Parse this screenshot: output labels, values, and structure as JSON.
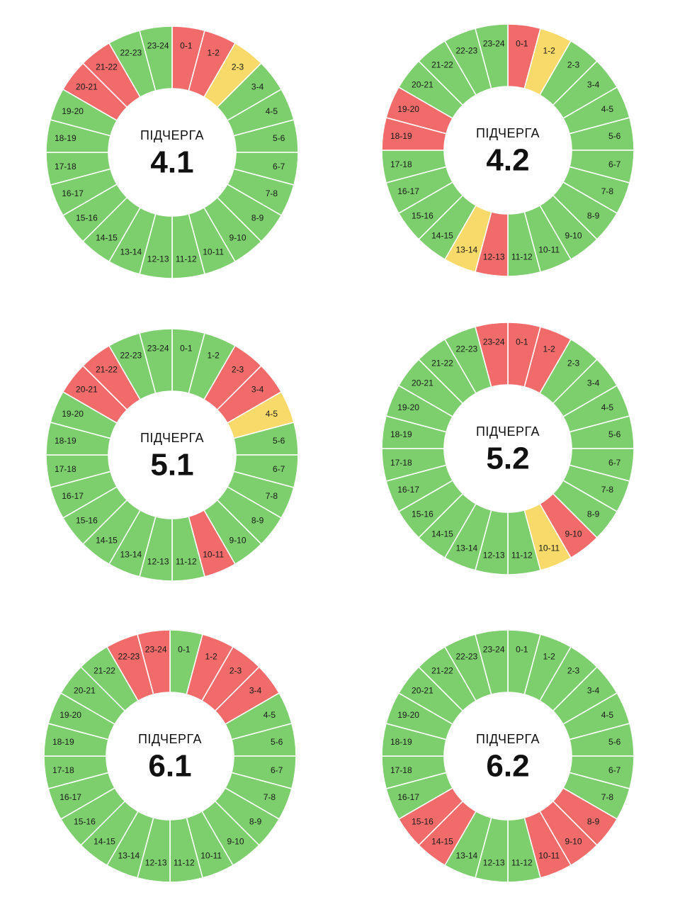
{
  "colors": {
    "on": "#7ccf6c",
    "off": "#f26b6b",
    "maybe": "#f8da6a"
  },
  "hour_labels": [
    "0-1",
    "1-2",
    "2-3",
    "3-4",
    "4-5",
    "5-6",
    "6-7",
    "7-8",
    "8-9",
    "9-10",
    "10-11",
    "11-12",
    "12-13",
    "13-14",
    "14-15",
    "15-16",
    "16-17",
    "17-18",
    "18-19",
    "19-20",
    "20-21",
    "21-22",
    "22-23",
    "23-24"
  ],
  "charts": [
    {
      "caption": "ПІДЧЕРГА",
      "number": "4.1",
      "status": [
        "off",
        "off",
        "maybe",
        "on",
        "on",
        "on",
        "on",
        "on",
        "on",
        "on",
        "on",
        "on",
        "on",
        "on",
        "on",
        "on",
        "on",
        "on",
        "on",
        "on",
        "off",
        "off",
        "on",
        "on"
      ]
    },
    {
      "caption": "ПІДЧЕРГА",
      "number": "4.2",
      "status": [
        "off",
        "maybe",
        "on",
        "on",
        "on",
        "on",
        "on",
        "on",
        "on",
        "on",
        "on",
        "on",
        "off",
        "maybe",
        "on",
        "on",
        "on",
        "on",
        "off",
        "off",
        "on",
        "on",
        "on",
        "on"
      ]
    },
    {
      "caption": "ПІДЧЕРГА",
      "number": "5.1",
      "status": [
        "on",
        "on",
        "off",
        "off",
        "maybe",
        "on",
        "on",
        "on",
        "on",
        "on",
        "off",
        "on",
        "on",
        "on",
        "on",
        "on",
        "on",
        "on",
        "on",
        "on",
        "off",
        "off",
        "on",
        "on"
      ]
    },
    {
      "caption": "ПІДЧЕРГА",
      "number": "5.2",
      "status": [
        "off",
        "off",
        "on",
        "on",
        "on",
        "on",
        "on",
        "on",
        "on",
        "off",
        "maybe",
        "on",
        "on",
        "on",
        "on",
        "on",
        "on",
        "on",
        "on",
        "on",
        "on",
        "on",
        "on",
        "off"
      ]
    },
    {
      "caption": "ПІДЧЕРГА",
      "number": "6.1",
      "status": [
        "on",
        "off",
        "off",
        "off",
        "on",
        "on",
        "on",
        "on",
        "on",
        "on",
        "on",
        "on",
        "on",
        "on",
        "on",
        "on",
        "on",
        "on",
        "on",
        "on",
        "on",
        "on",
        "off",
        "off"
      ]
    },
    {
      "caption": "ПІДЧЕРГА",
      "number": "6.2",
      "status": [
        "on",
        "on",
        "on",
        "on",
        "on",
        "on",
        "on",
        "on",
        "off",
        "off",
        "off",
        "on",
        "on",
        "on",
        "off",
        "off",
        "on",
        "on",
        "on",
        "on",
        "on",
        "on",
        "on",
        "on"
      ]
    }
  ]
}
